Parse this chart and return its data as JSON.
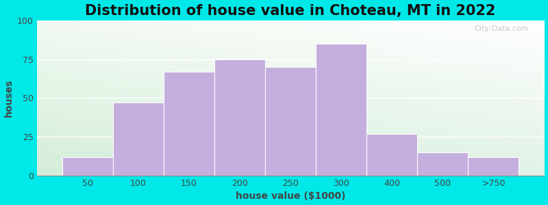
{
  "title": "Distribution of house value in Choteau, MT in 2022",
  "xlabel": "house value ($1000)",
  "ylabel": "houses",
  "bar_labels": [
    "50",
    "100",
    "150",
    "200",
    "250",
    "300",
    "400",
    "500",
    ">750"
  ],
  "bar_heights": [
    12,
    47,
    67,
    75,
    70,
    85,
    27,
    15,
    12
  ],
  "bar_left_edges": [
    0,
    1,
    2,
    3,
    4,
    5,
    6,
    7,
    8
  ],
  "bar_widths": [
    1,
    1,
    1,
    1,
    1,
    1,
    1,
    1,
    1
  ],
  "bar_color": "#c4aedd",
  "bar_edgecolor": "#ffffff",
  "ylim": [
    0,
    100
  ],
  "yticks": [
    0,
    25,
    50,
    75,
    100
  ],
  "bg_outer": "#00e8e8",
  "title_fontsize": 15,
  "axis_label_fontsize": 10,
  "tick_fontsize": 9,
  "watermark": "City-Data.com",
  "title_color": "#111111",
  "label_color": "#444444"
}
